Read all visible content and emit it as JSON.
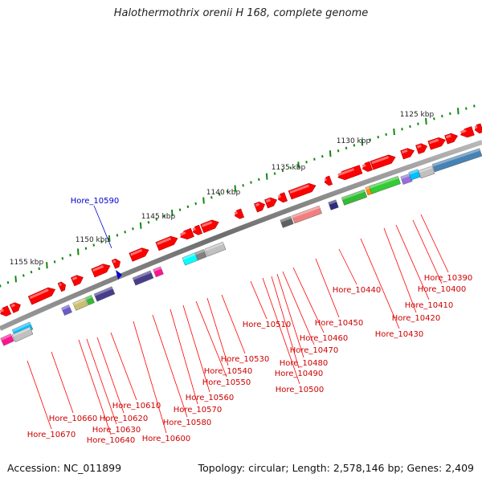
{
  "header": {
    "title": "Halothermothrix orenii H 168, complete genome"
  },
  "footer": {
    "accession": "Accession: NC_011899",
    "summary": "Topology: circular; Length: 2,578,146 bp; Genes: 2,409"
  },
  "colors": {
    "backbone": "#808080",
    "gene_arrow": "#ff0000",
    "gene_label": "#cc0000",
    "highlight_label": "#0000cc",
    "tick": "#118811"
  },
  "ruler": [
    {
      "label": "1125 kbp"
    },
    {
      "label": "1130 kbp"
    },
    {
      "label": "1135 kbp"
    },
    {
      "label": "1140 kbp"
    },
    {
      "label": "1145 kbp"
    },
    {
      "label": "1150 kbp"
    },
    {
      "label": "1155 kbp"
    }
  ],
  "highlight": {
    "label": "Hore_10590",
    "icon": "pointer-triangle-icon"
  },
  "genes": [
    {
      "label": "Hore_10390"
    },
    {
      "label": "Hore_10400"
    },
    {
      "label": "Hore_10410"
    },
    {
      "label": "Hore_10420"
    },
    {
      "label": "Hore_10430"
    },
    {
      "label": "Hore_10440"
    },
    {
      "label": "Hore_10450"
    },
    {
      "label": "Hore_10460"
    },
    {
      "label": "Hore_10470"
    },
    {
      "label": "Hore_10480"
    },
    {
      "label": "Hore_10490"
    },
    {
      "label": "Hore_10500"
    },
    {
      "label": "Hore_10510"
    },
    {
      "label": "Hore_10530"
    },
    {
      "label": "Hore_10540"
    },
    {
      "label": "Hore_10550"
    },
    {
      "label": "Hore_10560"
    },
    {
      "label": "Hore_10570"
    },
    {
      "label": "Hore_10580"
    },
    {
      "label": "Hore_10600"
    },
    {
      "label": "Hore_10610"
    },
    {
      "label": "Hore_10620"
    },
    {
      "label": "Hore_10630"
    },
    {
      "label": "Hore_10640"
    },
    {
      "label": "Hore_10660"
    },
    {
      "label": "Hore_10670"
    }
  ]
}
